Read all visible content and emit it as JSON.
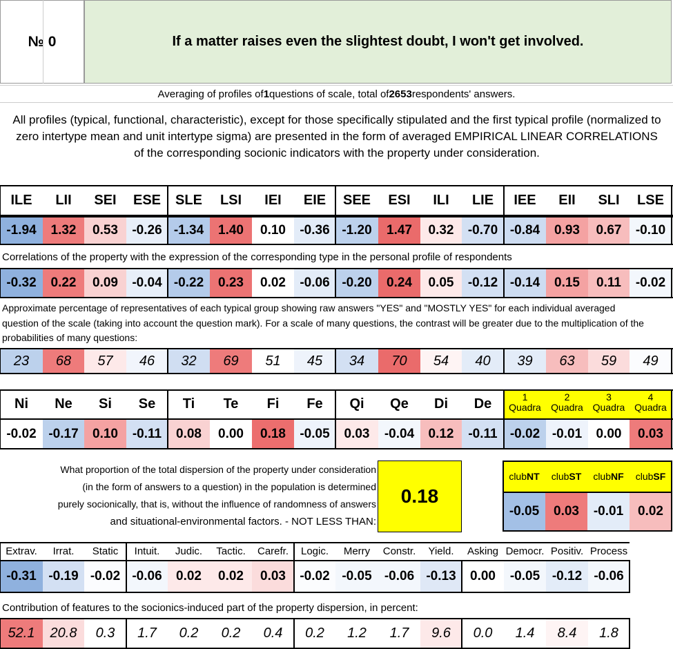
{
  "header": {
    "number_label": "№ 0",
    "statement": "If a matter raises even the slightest doubt, I won't get involved."
  },
  "summary": {
    "prefix": "Averaging of profiles of ",
    "n_questions": "1",
    "middle": " questions of scale, total of ",
    "n_respondents": "2653",
    "suffix": " respondents' answers."
  },
  "description": "All profiles (typical, functional, characteristic), except for those specifically stipulated and the first typical profile (normalized to zero intertype mean and unit intertype sigma) are presented in the form of averaged EMPIRICAL LINEAR CORRELATIONS of the corresponding socionic indicators with the property under consideration.",
  "types": [
    "ILE",
    "LII",
    "SEI",
    "ESE",
    "SLE",
    "LSI",
    "IEI",
    "EIE",
    "SEE",
    "ESI",
    "ILI",
    "LIE",
    "IEE",
    "EII",
    "SLI",
    "LSE"
  ],
  "type_profile": [
    {
      "v": "-1.94",
      "bg": "#8fb1de"
    },
    {
      "v": "1.32",
      "bg": "#ee7b7b"
    },
    {
      "v": "0.53",
      "bg": "#f9d2d2"
    },
    {
      "v": "-0.26",
      "bg": "#e8eff9"
    },
    {
      "v": "-1.34",
      "bg": "#b4cbea"
    },
    {
      "v": "1.40",
      "bg": "#ec7373"
    },
    {
      "v": "0.10",
      "bg": "#ffffff"
    },
    {
      "v": "-0.36",
      "bg": "#e3ecf8"
    },
    {
      "v": "-1.20",
      "bg": "#bcd1ec"
    },
    {
      "v": "1.47",
      "bg": "#ea6b6b"
    },
    {
      "v": "0.32",
      "bg": "#fde9e9"
    },
    {
      "v": "-0.70",
      "bg": "#d3e0f3"
    },
    {
      "v": "-0.84",
      "bg": "#cddcf1"
    },
    {
      "v": "0.93",
      "bg": "#f4a2a2"
    },
    {
      "v": "0.67",
      "bg": "#f7bdbd"
    },
    {
      "v": "-0.10",
      "bg": "#f3f7fc"
    }
  ],
  "corr_caption": "Correlations of the property with the expression of the corresponding type in the personal profile of respondents",
  "type_corr": [
    {
      "v": "-0.32",
      "bg": "#8fb1de"
    },
    {
      "v": "0.22",
      "bg": "#ee7b7b"
    },
    {
      "v": "0.09",
      "bg": "#f9d2d2"
    },
    {
      "v": "-0.04",
      "bg": "#e8eff9"
    },
    {
      "v": "-0.22",
      "bg": "#b4cbea"
    },
    {
      "v": "0.23",
      "bg": "#ec7373"
    },
    {
      "v": "0.02",
      "bg": "#ffffff"
    },
    {
      "v": "-0.06",
      "bg": "#e3ecf8"
    },
    {
      "v": "-0.20",
      "bg": "#bcd1ec"
    },
    {
      "v": "0.24",
      "bg": "#ea6b6b"
    },
    {
      "v": "0.05",
      "bg": "#fde9e9"
    },
    {
      "v": "-0.12",
      "bg": "#d3e0f3"
    },
    {
      "v": "-0.14",
      "bg": "#cddcf1"
    },
    {
      "v": "0.15",
      "bg": "#f4a2a2"
    },
    {
      "v": "0.11",
      "bg": "#f7bdbd"
    },
    {
      "v": "-0.02",
      "bg": "#f3f7fc"
    }
  ],
  "pct_caption": "Approximate percentage of representatives of each typical group showing raw answers \"YES\" and \"MOSTLY YES\" for each individual averaged question of the scale (taking into account the question mark). For a scale of many questions, the contrast will be greater due to the multiplication of the probabilities of many questions:",
  "type_pct": [
    {
      "v": "23",
      "bg": "#bcd1ec"
    },
    {
      "v": "68",
      "bg": "#ee7b7b"
    },
    {
      "v": "57",
      "bg": "#fde9e9"
    },
    {
      "v": "46",
      "bg": "#f1f5fc"
    },
    {
      "v": "32",
      "bg": "#d0def2"
    },
    {
      "v": "69",
      "bg": "#ee7b7b"
    },
    {
      "v": "51",
      "bg": "#ffffff"
    },
    {
      "v": "45",
      "bg": "#eef3fb"
    },
    {
      "v": "34",
      "bg": "#d3e0f3"
    },
    {
      "v": "70",
      "bg": "#ea6b6b"
    },
    {
      "v": "54",
      "bg": "#fef4f4"
    },
    {
      "v": "40",
      "bg": "#e3ecf8"
    },
    {
      "v": "39",
      "bg": "#e3ecf8"
    },
    {
      "v": "63",
      "bg": "#f7bdbd"
    },
    {
      "v": "59",
      "bg": "#fbdcdc"
    },
    {
      "v": "49",
      "bg": "#fbfcfe"
    }
  ],
  "functions": [
    "Ni",
    "Ne",
    "Si",
    "Se",
    "Ti",
    "Te",
    "Fi",
    "Fe",
    "Qi",
    "Qe",
    "Di",
    "De"
  ],
  "quadras": [
    {
      "n": "1",
      "label": "Quadra"
    },
    {
      "n": "2",
      "label": "Quadra"
    },
    {
      "n": "3",
      "label": "Quadra"
    },
    {
      "n": "4",
      "label": "Quadra"
    }
  ],
  "func_values": [
    {
      "v": "-0.02",
      "bg": "#ffffff"
    },
    {
      "v": "-0.17",
      "bg": "#bcd1ec"
    },
    {
      "v": "0.10",
      "bg": "#f4a2a2"
    },
    {
      "v": "-0.11",
      "bg": "#d3e0f3"
    },
    {
      "v": "0.08",
      "bg": "#f9d2d2"
    },
    {
      "v": "0.00",
      "bg": "#ffffff"
    },
    {
      "v": "0.18",
      "bg": "#ec6e6e"
    },
    {
      "v": "-0.05",
      "bg": "#eef3fb"
    },
    {
      "v": "0.03",
      "bg": "#fde9e9"
    },
    {
      "v": "-0.04",
      "bg": "#f3f7fc"
    },
    {
      "v": "0.12",
      "bg": "#f7bdbd"
    },
    {
      "v": "-0.11",
      "bg": "#d3e0f3"
    },
    {
      "v": "-0.02",
      "bg": "#bcd1ec"
    },
    {
      "v": "-0.01",
      "bg": "#eef3fb"
    },
    {
      "v": "0.00",
      "bg": "#ffffff"
    },
    {
      "v": "0.03",
      "bg": "#ee7b7b"
    }
  ],
  "dispersion": {
    "line1": "What proportion of the total dispersion of the property under consideration",
    "line2": "(in the form of answers to a question) in the population is determined",
    "line3": "purely socionically, that is, without the influence of randomness of answers",
    "line4": "and situational-environmental factors. - NOT LESS THAN:",
    "value": "0.18"
  },
  "clubs": [
    {
      "label": "club",
      "bold": "NT",
      "v": "-0.05",
      "bg": "#a3c0e6"
    },
    {
      "label": "club",
      "bold": "ST",
      "v": "0.03",
      "bg": "#ee7b7b"
    },
    {
      "label": "club",
      "bold": "NF",
      "v": "-0.01",
      "bg": "#e3ecf8"
    },
    {
      "label": "club",
      "bold": "SF",
      "v": "0.02",
      "bg": "#f7bdbd"
    }
  ],
  "traits": [
    "Extrav.",
    "Irrat.",
    "Static",
    "Intuit.",
    "Judic.",
    "Tactic.",
    "Carefr.",
    "Logic.",
    "Merry",
    "Constr.",
    "Yield.",
    "Asking",
    "Democr.",
    "Positiv.",
    "Process"
  ],
  "trait_values": [
    {
      "v": "-0.31",
      "bg": "#8fb1de"
    },
    {
      "v": "-0.19",
      "bg": "#d3e0f3"
    },
    {
      "v": "-0.02",
      "bg": "#fbfcfe"
    },
    {
      "v": "-0.06",
      "bg": "#f3f7fc"
    },
    {
      "v": "0.02",
      "bg": "#fde9e9"
    },
    {
      "v": "0.02",
      "bg": "#fde9e9"
    },
    {
      "v": "0.03",
      "bg": "#fbdcdc"
    },
    {
      "v": "-0.02",
      "bg": "#fbfcfe"
    },
    {
      "v": "-0.05",
      "bg": "#f3f7fc"
    },
    {
      "v": "-0.06",
      "bg": "#f3f7fc"
    },
    {
      "v": "-0.13",
      "bg": "#dfe8f6"
    },
    {
      "v": "0.00",
      "bg": "#ffffff"
    },
    {
      "v": "-0.05",
      "bg": "#f3f7fc"
    },
    {
      "v": "-0.12",
      "bg": "#e3ecf8"
    },
    {
      "v": "-0.06",
      "bg": "#f3f7fc"
    }
  ],
  "contrib_caption": "Contribution of features to the socionics-induced part of the property dispersion, in percent:",
  "trait_contrib": [
    {
      "v": "52.1",
      "bg": "#ee7b7b"
    },
    {
      "v": "20.8",
      "bg": "#fbdcdc"
    },
    {
      "v": "0.3",
      "bg": "#ffffff"
    },
    {
      "v": "1.7",
      "bg": "#ffffff"
    },
    {
      "v": "0.2",
      "bg": "#ffffff"
    },
    {
      "v": "0.2",
      "bg": "#ffffff"
    },
    {
      "v": "0.4",
      "bg": "#ffffff"
    },
    {
      "v": "0.2",
      "bg": "#ffffff"
    },
    {
      "v": "1.2",
      "bg": "#ffffff"
    },
    {
      "v": "1.7",
      "bg": "#ffffff"
    },
    {
      "v": "9.6",
      "bg": "#fde9e9"
    },
    {
      "v": "0.0",
      "bg": "#ffffff"
    },
    {
      "v": "1.4",
      "bg": "#ffffff"
    },
    {
      "v": "8.4",
      "bg": "#fef4f4"
    },
    {
      "v": "1.8",
      "bg": "#ffffff"
    }
  ]
}
